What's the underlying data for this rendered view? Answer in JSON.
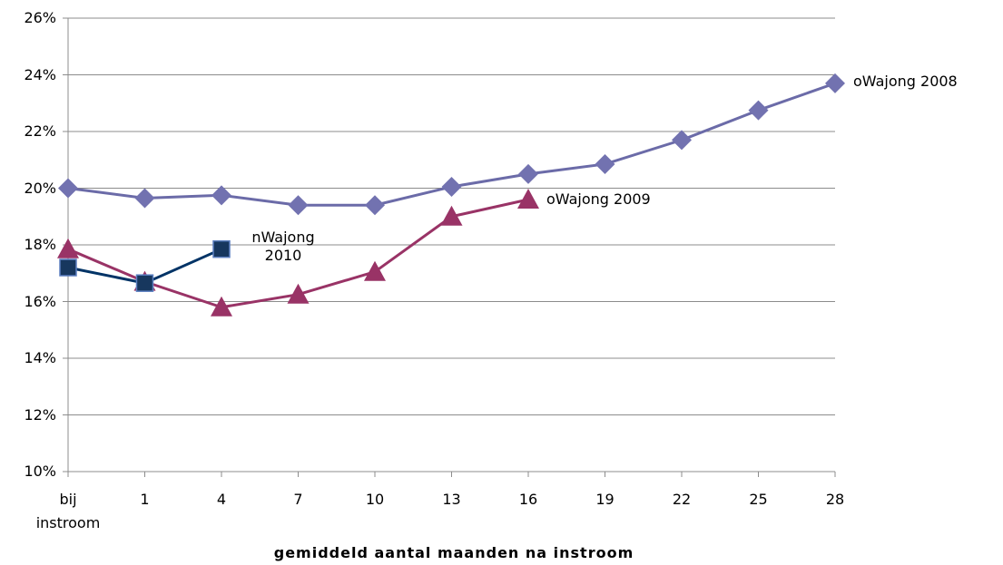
{
  "chart_data": {
    "type": "line",
    "x_label": "gemiddeld aantal maanden na instroom",
    "categories": [
      "bij instroom",
      "1",
      "4",
      "7",
      "10",
      "13",
      "16",
      "19",
      "22",
      "25",
      "28"
    ],
    "ylim": [
      10,
      26
    ],
    "yticks": [
      {
        "value": 10,
        "label": "10%"
      },
      {
        "value": 12,
        "label": "12%"
      },
      {
        "value": 14,
        "label": "14%"
      },
      {
        "value": 16,
        "label": "16%"
      },
      {
        "value": 18,
        "label": "18%"
      },
      {
        "value": 20,
        "label": "20%"
      },
      {
        "value": 22,
        "label": "22%"
      },
      {
        "value": 24,
        "label": "24%"
      },
      {
        "value": 26,
        "label": "26%"
      }
    ],
    "grid": true,
    "series": [
      {
        "name": "oWajong 2008",
        "color": "#6b6ba8",
        "marker": "diamond",
        "values": [
          20.0,
          19.65,
          19.75,
          19.4,
          19.4,
          20.05,
          20.5,
          20.85,
          21.7,
          22.75,
          23.7
        ]
      },
      {
        "name": "oWajong 2009",
        "color": "#993366",
        "marker": "triangle",
        "values": [
          17.85,
          16.7,
          15.8,
          16.25,
          17.05,
          19.0,
          19.6,
          null,
          null,
          null,
          null
        ]
      },
      {
        "name": "nWajong 2010",
        "color": "#003366",
        "marker": "square",
        "values": [
          17.2,
          16.65,
          17.85,
          null,
          null,
          null,
          null,
          null,
          null,
          null,
          null
        ]
      }
    ]
  }
}
